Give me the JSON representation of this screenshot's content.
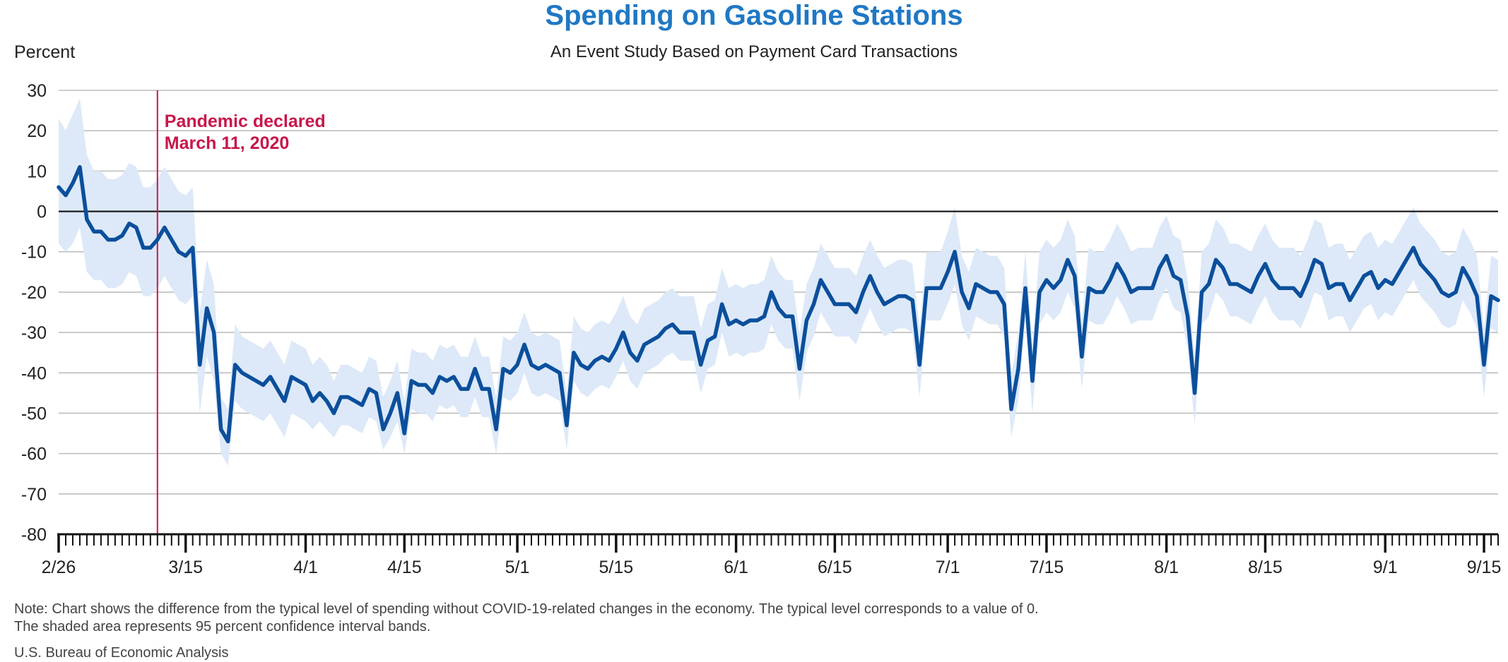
{
  "chart_data": {
    "type": "line",
    "title": "Spending on Gasoline Stations",
    "subtitle": "An Event Study Based on Payment Card Transactions",
    "ylabel": "Percent",
    "ylim": [
      -80,
      30
    ],
    "yticks": [
      30,
      20,
      10,
      0,
      -10,
      -20,
      -30,
      -40,
      -50,
      -60,
      -70,
      -80
    ],
    "x_start": "2020-02-26",
    "x_end": "2020-09-17",
    "xtick_labels": [
      "2/26",
      "3/15",
      "4/1",
      "4/15",
      "5/1",
      "5/15",
      "6/1",
      "6/15",
      "7/1",
      "7/15",
      "8/1",
      "8/15",
      "9/1",
      "9/15"
    ],
    "xtick_dates": [
      "2020-02-26",
      "2020-03-15",
      "2020-04-01",
      "2020-04-15",
      "2020-05-01",
      "2020-05-15",
      "2020-06-01",
      "2020-06-15",
      "2020-07-01",
      "2020-07-15",
      "2020-08-01",
      "2020-08-15",
      "2020-09-01",
      "2020-09-15"
    ],
    "grid": true,
    "colors": {
      "line": "#0b4f9c",
      "band": "#dde9f8",
      "event": "#c8174a",
      "title": "#1f78c4"
    },
    "annotation": {
      "date": "2020-03-11",
      "label_line1": "Pandemic declared",
      "label_line2": "March 11, 2020"
    },
    "series": [
      {
        "values": [
          6,
          4,
          7,
          11,
          -2,
          -5,
          -5,
          -7,
          -7,
          -6,
          -3,
          -4,
          -9,
          -9,
          -7,
          -4,
          -7,
          -10,
          -11,
          -9,
          -38,
          -24,
          -30,
          -54,
          -57,
          -38,
          -40,
          -41,
          -42,
          -43,
          -41,
          -44,
          -47,
          -41,
          -42,
          -43,
          -47,
          -45,
          -47,
          -50,
          -46,
          -46,
          -47,
          -48,
          -44,
          -45,
          -54,
          -50,
          -45,
          -55,
          -42,
          -43,
          -43,
          -45,
          -41,
          -42,
          -41,
          -44,
          -44,
          -39,
          -44,
          -44,
          -54,
          -39,
          -40,
          -38,
          -33,
          -38,
          -39,
          -38,
          -39,
          -40,
          -53,
          -35,
          -38,
          -39,
          -37,
          -36,
          -37,
          -34,
          -30,
          -35,
          -37,
          -33,
          -32,
          -31,
          -29,
          -28,
          -30,
          -30,
          -30,
          -38,
          -32,
          -31,
          -23,
          -28,
          -27,
          -28,
          -27,
          -27,
          -26,
          -20,
          -24,
          -26,
          -26,
          -39,
          -27,
          -23,
          -17,
          -20,
          -23,
          -23,
          -23,
          -25,
          -20,
          -16,
          -20,
          -23,
          -22,
          -21,
          -21,
          -22,
          -38,
          -19,
          -19,
          -19,
          -15,
          -10,
          -20,
          -24,
          -18,
          -19,
          -20,
          -20,
          -23,
          -49,
          -39,
          -19,
          -42,
          -20,
          -17,
          -19,
          -17,
          -12,
          -16,
          -36,
          -19,
          -20,
          -20,
          -17,
          -13,
          -16,
          -20,
          -19,
          -19,
          -19,
          -14,
          -11,
          -16,
          -17,
          -26,
          -45,
          -20,
          -18,
          -12,
          -14,
          -18,
          -18,
          -19,
          -20,
          -16,
          -13,
          -17,
          -19,
          -19,
          -19,
          -21,
          -17,
          -12,
          -13,
          -19,
          -18,
          -18,
          -22,
          -19,
          -16,
          -15,
          -19,
          -17,
          -18,
          -15,
          -12,
          -9,
          -13,
          -15,
          -17,
          -20,
          -21,
          -20,
          -14,
          -17,
          -21,
          -38,
          -21,
          -22
        ],
        "lower": [
          -8,
          -10,
          -8,
          -4,
          -15,
          -17,
          -17,
          -19,
          -19,
          -18,
          -15,
          -16,
          -21,
          -21,
          -19,
          -16,
          -19,
          -22,
          -23,
          -21,
          -50,
          -36,
          -42,
          -60,
          -63,
          -47,
          -49,
          -50,
          -51,
          -52,
          -50,
          -53,
          -56,
          -50,
          -51,
          -52,
          -54,
          -52,
          -54,
          -56,
          -53,
          -53,
          -54,
          -55,
          -51,
          -52,
          -59,
          -56,
          -52,
          -60,
          -49,
          -50,
          -50,
          -52,
          -48,
          -49,
          -48,
          -51,
          -51,
          -46,
          -51,
          -51,
          -60,
          -46,
          -47,
          -45,
          -40,
          -45,
          -46,
          -45,
          -46,
          -47,
          -59,
          -42,
          -45,
          -46,
          -44,
          -43,
          -44,
          -41,
          -37,
          -42,
          -44,
          -40,
          -39,
          -38,
          -36,
          -35,
          -37,
          -37,
          -37,
          -45,
          -39,
          -38,
          -30,
          -36,
          -35,
          -36,
          -35,
          -35,
          -34,
          -28,
          -32,
          -34,
          -34,
          -47,
          -35,
          -31,
          -25,
          -28,
          -31,
          -31,
          -31,
          -33,
          -28,
          -24,
          -28,
          -31,
          -30,
          -29,
          -29,
          -30,
          -46,
          -27,
          -27,
          -27,
          -23,
          -18,
          -28,
          -32,
          -26,
          -27,
          -28,
          -28,
          -31,
          -56,
          -47,
          -27,
          -50,
          -28,
          -25,
          -27,
          -25,
          -20,
          -24,
          -44,
          -27,
          -28,
          -28,
          -25,
          -21,
          -24,
          -28,
          -27,
          -27,
          -27,
          -22,
          -19,
          -24,
          -25,
          -34,
          -53,
          -28,
          -26,
          -20,
          -22,
          -26,
          -26,
          -27,
          -28,
          -24,
          -21,
          -25,
          -27,
          -27,
          -27,
          -29,
          -25,
          -20,
          -21,
          -27,
          -26,
          -26,
          -30,
          -27,
          -24,
          -23,
          -27,
          -25,
          -26,
          -23,
          -20,
          -17,
          -21,
          -23,
          -25,
          -28,
          -29,
          -28,
          -22,
          -25,
          -29,
          -46,
          -29,
          -30
        ],
        "upper": [
          23,
          20,
          24,
          28,
          14,
          10,
          10,
          8,
          8,
          9,
          12,
          11,
          6,
          6,
          8,
          11,
          8,
          5,
          4,
          6,
          -25,
          -12,
          -18,
          -46,
          -49,
          -28,
          -31,
          -32,
          -33,
          -34,
          -32,
          -35,
          -38,
          -32,
          -33,
          -34,
          -38,
          -36,
          -38,
          -42,
          -38,
          -38,
          -39,
          -40,
          -36,
          -37,
          -46,
          -42,
          -37,
          -47,
          -34,
          -35,
          -35,
          -37,
          -33,
          -34,
          -33,
          -36,
          -36,
          -31,
          -36,
          -36,
          -46,
          -31,
          -32,
          -30,
          -25,
          -30,
          -31,
          -30,
          -31,
          -32,
          -45,
          -26,
          -29,
          -30,
          -28,
          -27,
          -28,
          -25,
          -21,
          -26,
          -28,
          -24,
          -23,
          -22,
          -20,
          -19,
          -21,
          -21,
          -21,
          -29,
          -23,
          -22,
          -14,
          -19,
          -18,
          -19,
          -18,
          -18,
          -17,
          -11,
          -15,
          -17,
          -17,
          -30,
          -18,
          -14,
          -8,
          -11,
          -14,
          -14,
          -14,
          -16,
          -11,
          -7,
          -11,
          -14,
          -13,
          -12,
          -12,
          -13,
          -29,
          -10,
          -10,
          -10,
          -5,
          1,
          -11,
          -15,
          -9,
          -10,
          -11,
          -11,
          -14,
          -41,
          -30,
          -10,
          -33,
          -10,
          -7,
          -9,
          -7,
          -2,
          -6,
          -27,
          -9,
          -10,
          -10,
          -7,
          -3,
          -6,
          -10,
          -9,
          -9,
          -9,
          -4,
          -1,
          -6,
          -7,
          -17,
          -36,
          -10,
          -8,
          -2,
          -4,
          -8,
          -8,
          -9,
          -10,
          -6,
          -3,
          -7,
          -9,
          -9,
          -9,
          -11,
          -7,
          -2,
          -3,
          -9,
          -8,
          -8,
          -12,
          -9,
          -6,
          -5,
          -9,
          -7,
          -8,
          -5,
          -2,
          1,
          -3,
          -5,
          -7,
          -10,
          -11,
          -10,
          -4,
          -7,
          -11,
          -29,
          -11,
          -12
        ]
      }
    ]
  },
  "note_line1": "Note: Chart shows the difference from the typical level of spending without COVID-19-related changes in the economy. The typical level corresponds to a value of 0.",
  "note_line2": "The shaded area represents 95 percent confidence interval bands.",
  "source": "U.S. Bureau of Economic Analysis"
}
